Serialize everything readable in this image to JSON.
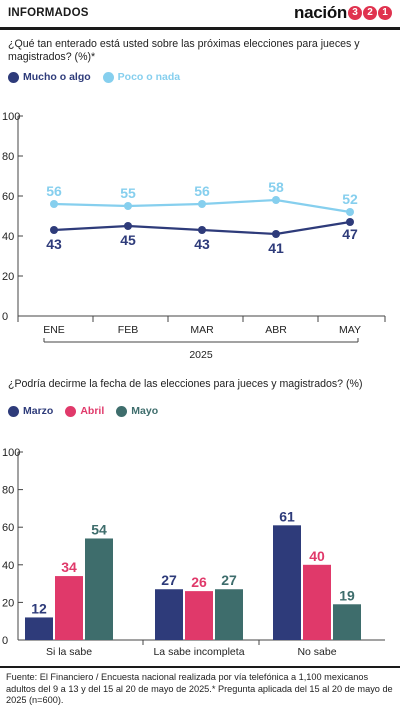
{
  "header": {
    "section": "INFORMADOS",
    "logo_word": "nación",
    "logo_digits": [
      "3",
      "2",
      "1"
    ]
  },
  "colors": {
    "navy": "#2e3b7a",
    "light_blue": "#86cfee",
    "pink": "#e0396a",
    "teal": "#3e6d6c"
  },
  "chart_data": [
    {
      "type": "line",
      "question": "¿Qué tan enterado está usted sobre las próximas  elecciones para jueces y magistrados? (%)*",
      "categories": [
        "ENE",
        "FEB",
        "MAR",
        "ABR",
        "MAY"
      ],
      "xlabel": "2025",
      "ylim": [
        0,
        100
      ],
      "yticks": [
        0,
        20,
        40,
        60,
        80,
        100
      ],
      "series": [
        {
          "name": "Mucho o algo",
          "color": "#2e3b7a",
          "values": [
            43,
            45,
            43,
            41,
            47
          ]
        },
        {
          "name": "Poco o nada",
          "color": "#86cfee",
          "values": [
            56,
            55,
            56,
            58,
            52
          ]
        }
      ],
      "legend": "top-left",
      "grid": false
    },
    {
      "type": "bar",
      "question": "¿Podría decirme la fecha de las elecciones para jueces y magistrados? (%)",
      "categories": [
        "Si la sabe",
        "La sabe incompleta",
        "No sabe"
      ],
      "ylim": [
        0,
        100
      ],
      "yticks": [
        0,
        20,
        40,
        60,
        80,
        100
      ],
      "series": [
        {
          "name": "Marzo",
          "color": "#2e3b7a",
          "values": [
            12,
            27,
            61
          ]
        },
        {
          "name": "Abril",
          "color": "#e0396a",
          "values": [
            34,
            26,
            40
          ]
        },
        {
          "name": "Mayo",
          "color": "#3e6d6c",
          "values": [
            54,
            27,
            19
          ]
        }
      ],
      "legend": "top-left",
      "grid": false
    }
  ],
  "footnote": "Fuente: El Financiero / Encuesta nacional realizada por vía telefónica a 1,100 mexicanos adultos del 9 a 13 y del 15 al 20 de mayo de 2025.* Pregunta aplicada del 15 al 20 de mayo de 2025 (n=600)."
}
